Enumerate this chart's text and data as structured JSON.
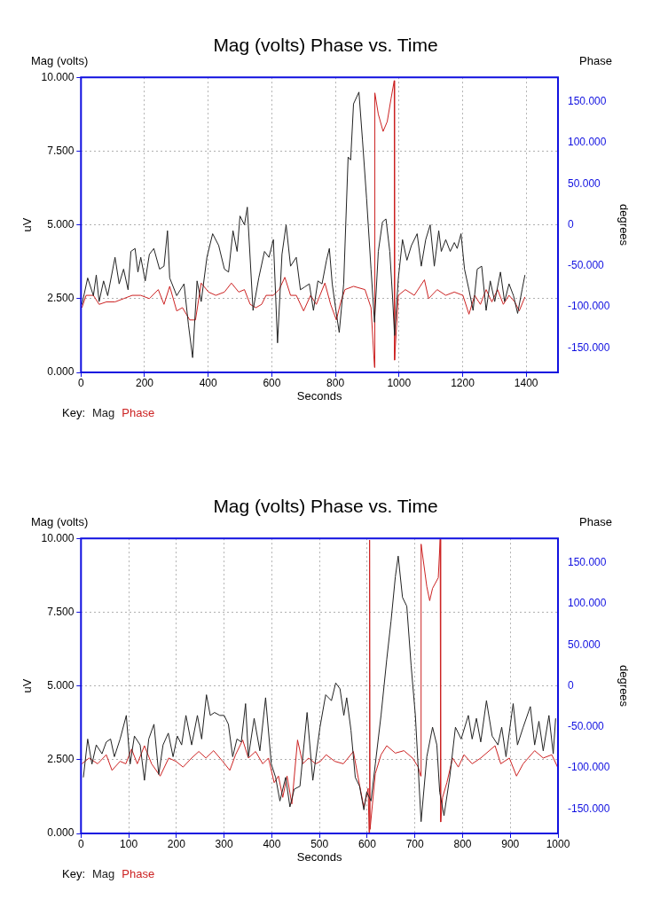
{
  "chart_data": [
    {
      "type": "line",
      "title": "Mag (volts) Phase vs. Time",
      "xlabel": "Seconds",
      "ylabel": "uV",
      "y2label": "degrees",
      "legend_title": "Key:",
      "legend": "bottom left",
      "grid": true,
      "marker": "none",
      "line_style": "solid",
      "annotations": [
        "Mag (volts)",
        "Phase"
      ],
      "xlim": [
        0,
        1500
      ],
      "xticks": [
        0,
        200,
        400,
        600,
        800,
        1000,
        1200,
        1400
      ],
      "ylim": [
        0,
        10
      ],
      "yticks": [
        {
          "value": 0,
          "label": "0.000"
        },
        {
          "value": 2.5,
          "label": "2.500"
        },
        {
          "value": 5,
          "label": "5.000"
        },
        {
          "value": 7.5,
          "label": "7.500"
        },
        {
          "value": 10,
          "label": "10.000"
        }
      ],
      "y2lim": [
        -180,
        180
      ],
      "y2ticks": [
        {
          "value": -150,
          "label": "-150.000"
        },
        {
          "value": -100,
          "label": "-100.000"
        },
        {
          "value": -50,
          "label": "-50.000"
        },
        0,
        {
          "value": 50,
          "label": "50.000"
        },
        {
          "value": 100,
          "label": "100.000"
        },
        {
          "value": 150,
          "label": "150.000"
        }
      ],
      "series": [
        {
          "name": "Mag",
          "color": "#222222",
          "x": [
            3,
            21,
            39,
            48,
            57,
            71,
            84,
            107,
            120,
            134,
            148,
            157,
            170,
            179,
            188,
            202,
            215,
            229,
            247,
            261,
            272,
            279,
            301,
            324,
            338,
            351,
            365,
            378,
            396,
            414,
            433,
            451,
            464,
            478,
            491,
            500,
            514,
            523,
            541,
            559,
            577,
            591,
            605,
            618,
            632,
            645,
            659,
            677,
            690,
            704,
            718,
            731,
            745,
            758,
            772,
            781,
            790,
            803,
            812,
            826,
            840,
            848,
            857,
            874,
            885,
            898,
            912,
            923,
            935,
            948,
            959,
            971,
            980,
            986,
            998,
            1011,
            1025,
            1039,
            1057,
            1070,
            1084,
            1098,
            1111,
            1125,
            1133,
            1147,
            1161,
            1174,
            1183,
            1195,
            1206,
            1220,
            1233,
            1246,
            1260,
            1274,
            1287,
            1301,
            1319,
            1332,
            1346,
            1360,
            1373,
            1387,
            1396
          ],
          "values": [
            2.3,
            3.2,
            2.6,
            3.3,
            2.4,
            3.1,
            2.6,
            3.9,
            3.0,
            3.5,
            2.8,
            4.1,
            4.2,
            3.4,
            3.9,
            3.1,
            4.0,
            4.2,
            3.5,
            3.6,
            4.8,
            3.2,
            2.6,
            3.0,
            1.6,
            0.5,
            3.1,
            2.4,
            3.9,
            4.7,
            4.3,
            3.5,
            3.4,
            4.8,
            4.1,
            5.3,
            5.0,
            5.6,
            2.1,
            3.2,
            4.1,
            3.9,
            4.5,
            1.0,
            4.0,
            5.0,
            3.6,
            3.9,
            2.8,
            2.9,
            3.0,
            2.1,
            3.1,
            3.0,
            3.8,
            4.2,
            3.0,
            2.0,
            1.35,
            3.0,
            7.3,
            7.2,
            9.1,
            9.5,
            7.9,
            5.9,
            3.5,
            1.7,
            4.1,
            5.1,
            5.2,
            4.1,
            2.5,
            1.25,
            3.2,
            4.5,
            3.8,
            4.3,
            4.7,
            3.6,
            4.5,
            5.0,
            3.6,
            4.8,
            4.1,
            4.5,
            4.1,
            4.4,
            4.2,
            4.7,
            3.5,
            2.8,
            2.1,
            3.5,
            3.6,
            2.1,
            3.1,
            2.4,
            3.4,
            2.4,
            3.0,
            2.6,
            2.0,
            2.8,
            3.3
          ]
        },
        {
          "name": "Phase",
          "color": "#cc2222",
          "axis": "y2",
          "x": [
            3,
            16,
            39,
            57,
            80,
            107,
            134,
            161,
            188,
            215,
            243,
            261,
            279,
            301,
            319,
            342,
            360,
            378,
            401,
            424,
            451,
            473,
            496,
            514,
            532,
            550,
            568,
            582,
            605,
            623,
            641,
            659,
            677,
            700,
            722,
            740,
            767,
            785,
            803,
            817,
            830,
            857,
            893,
            912,
            923,
            924,
            935,
            950,
            963,
            975,
            985,
            986,
            998,
            1020,
            1048,
            1080,
            1093,
            1120,
            1147,
            1174,
            1201,
            1220,
            1238,
            1256,
            1274,
            1292,
            1310,
            1328,
            1346,
            1364,
            1378,
            1396
          ],
          "values": [
            -101,
            -86,
            -86,
            -97,
            -94,
            -94,
            -90,
            -86,
            -86,
            -90,
            -79,
            -97,
            -75,
            -105,
            -101,
            -116,
            -116,
            -71,
            -82,
            -86,
            -82,
            -71,
            -82,
            -79,
            -97,
            -101,
            -97,
            -86,
            -86,
            -79,
            -64,
            -86,
            -86,
            -105,
            -86,
            -97,
            -71,
            -97,
            -116,
            -94,
            -79,
            -75,
            -79,
            -101,
            -174,
            161,
            135,
            114,
            126,
            154,
            176,
            -165,
            -86,
            -79,
            -86,
            -67,
            -90,
            -79,
            -86,
            -82,
            -86,
            -109,
            -86,
            -97,
            -79,
            -94,
            -79,
            -97,
            -86,
            -94,
            -105,
            -88
          ]
        }
      ]
    },
    {
      "type": "line",
      "title": "Mag (volts) Phase vs. Time",
      "xlabel": "Seconds",
      "ylabel": "uV",
      "y2label": "degrees",
      "legend_title": "Key:",
      "legend": "bottom left",
      "grid": true,
      "marker": "none",
      "line_style": "solid",
      "annotations": [
        "Mag (volts)",
        "Phase"
      ],
      "xlim": [
        0,
        1000
      ],
      "xticks": [
        0,
        100,
        200,
        300,
        400,
        500,
        600,
        700,
        800,
        900,
        1000
      ],
      "ylim": [
        0,
        10
      ],
      "yticks": [
        {
          "value": 0,
          "label": "0.000"
        },
        {
          "value": 2.5,
          "label": "2.500"
        },
        {
          "value": 5,
          "label": "5.000"
        },
        {
          "value": 7.5,
          "label": "7.500"
        },
        {
          "value": 10,
          "label": "10.000"
        }
      ],
      "y2lim": [
        -180,
        180
      ],
      "y2ticks": [
        {
          "value": -150,
          "label": "-150.000"
        },
        {
          "value": -100,
          "label": "-100.000"
        },
        {
          "value": -50,
          "label": "-50.000"
        },
        0,
        {
          "value": 50,
          "label": "50.000"
        },
        {
          "value": 100,
          "label": "100.000"
        },
        {
          "value": 150,
          "label": "150.000"
        }
      ],
      "series": [
        {
          "name": "Mag",
          "color": "#222222",
          "x": [
            5,
            14,
            23,
            32,
            44,
            53,
            62,
            70,
            82,
            95,
            103,
            112,
            124,
            133,
            142,
            153,
            163,
            172,
            183,
            193,
            202,
            211,
            220,
            232,
            244,
            253,
            263,
            271,
            280,
            291,
            300,
            309,
            318,
            327,
            336,
            345,
            351,
            363,
            375,
            387,
            399,
            408,
            417,
            429,
            438,
            447,
            459,
            474,
            486,
            501,
            513,
            525,
            534,
            543,
            551,
            557,
            566,
            575,
            584,
            593,
            599,
            608,
            617,
            629,
            641,
            650,
            659,
            665,
            674,
            683,
            692,
            701,
            713,
            725,
            737,
            746,
            752,
            761,
            773,
            785,
            797,
            812,
            820,
            829,
            838,
            850,
            862,
            874,
            882,
            891,
            906,
            915,
            927,
            942,
            951,
            960,
            969,
            981,
            990,
            995
          ],
          "values": [
            1.9,
            3.2,
            2.35,
            3.0,
            2.7,
            3.1,
            3.2,
            2.6,
            3.2,
            4.0,
            2.35,
            3.3,
            3.0,
            1.8,
            3.2,
            3.7,
            2.0,
            3.0,
            3.4,
            2.6,
            3.3,
            3.0,
            4.0,
            3.0,
            4.0,
            3.2,
            4.7,
            4.0,
            4.1,
            4.0,
            4.0,
            3.7,
            2.6,
            3.2,
            3.1,
            4.4,
            2.6,
            3.9,
            2.8,
            4.6,
            2.35,
            1.9,
            1.1,
            1.9,
            0.9,
            1.5,
            1.6,
            4.1,
            1.8,
            3.6,
            4.7,
            4.5,
            5.1,
            4.9,
            4.0,
            4.6,
            3.5,
            1.9,
            1.6,
            0.8,
            1.4,
            1.1,
            2.35,
            4.0,
            5.9,
            7.2,
            8.7,
            9.4,
            8.0,
            7.7,
            5.7,
            4.0,
            0.4,
            2.6,
            3.6,
            3.0,
            1.4,
            0.6,
            1.9,
            3.6,
            3.2,
            4.0,
            3.2,
            3.9,
            3.1,
            4.5,
            3.3,
            3.0,
            3.6,
            2.6,
            4.4,
            3.0,
            3.6,
            4.3,
            3.0,
            3.8,
            2.8,
            4.0,
            2.7,
            3.9
          ]
        },
        {
          "name": "Phase",
          "color": "#cc2222",
          "axis": "y2",
          "x": [
            2,
            17,
            35,
            53,
            65,
            82,
            94,
            106,
            118,
            133,
            148,
            166,
            184,
            199,
            214,
            232,
            247,
            262,
            278,
            297,
            312,
            324,
            339,
            351,
            366,
            381,
            393,
            405,
            414,
            423,
            432,
            442,
            454,
            465,
            477,
            492,
            502,
            514,
            532,
            550,
            571,
            584,
            593,
            602,
            604,
            605,
            606,
            617,
            629,
            641,
            659,
            677,
            695,
            707,
            712,
            713,
            725,
            731,
            737,
            749,
            753,
            754,
            758,
            767,
            779,
            791,
            803,
            820,
            838,
            868,
            880,
            898,
            913,
            927,
            951,
            969,
            987,
            999
          ],
          "values": [
            -95,
            -88,
            -95,
            -84,
            -103,
            -92,
            -95,
            -77,
            -95,
            -73,
            -95,
            -110,
            -88,
            -92,
            -99,
            -88,
            -80,
            -88,
            -79,
            -92,
            -103,
            -84,
            -66,
            -88,
            -80,
            -95,
            -88,
            -118,
            -110,
            -136,
            -110,
            -144,
            -66,
            -95,
            -88,
            -95,
            -92,
            -84,
            -92,
            -95,
            -80,
            -121,
            -148,
            -125,
            -179,
            178,
            -175,
            -107,
            -84,
            -73,
            -82,
            -79,
            -88,
            -99,
            -110,
            173,
            121,
            104,
            119,
            132,
            179,
            -166,
            -136,
            -118,
            -88,
            -99,
            -84,
            -95,
            -88,
            -73,
            -95,
            -88,
            -110,
            -95,
            -79,
            -88,
            -84,
            -99
          ]
        }
      ]
    }
  ]
}
